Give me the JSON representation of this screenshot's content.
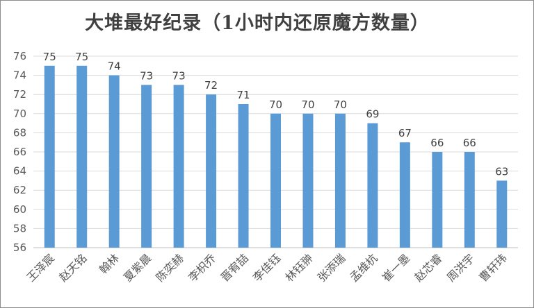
{
  "chart_data": {
    "type": "bar",
    "title": "大堆最好纪录（1小时内还原魔方数量）",
    "xlabel": "",
    "ylabel": "",
    "categories": [
      "王泽宸",
      "赵天铭",
      "翰林",
      "夏紫晨",
      "陈奕赫",
      "李枳乔",
      "晋宥喆",
      "李佳钰",
      "林钰翀",
      "张添瑞",
      "孟维杭",
      "崔一墨",
      "赵芯睿",
      "周洪宇",
      "曹轩玮"
    ],
    "values": [
      75,
      75,
      74,
      73,
      73,
      72,
      71,
      70,
      70,
      70,
      69,
      67,
      66,
      66,
      63
    ],
    "ylim": [
      56,
      76
    ],
    "yticks": [
      56,
      58,
      60,
      62,
      64,
      66,
      68,
      70,
      72,
      74,
      76
    ],
    "bar_color": "#5b9bd5",
    "grid": true,
    "legend": "none"
  }
}
